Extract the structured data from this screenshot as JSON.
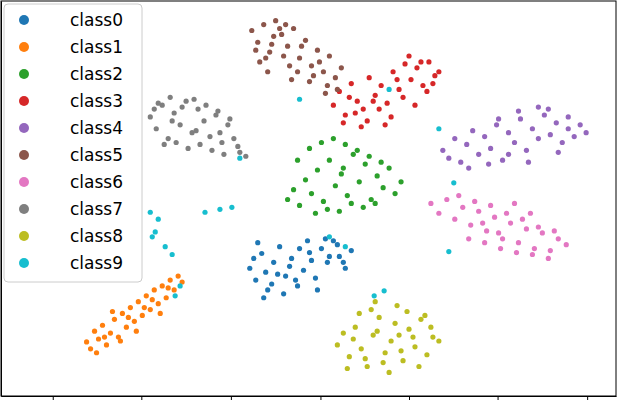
{
  "chart_data": {
    "type": "scatter",
    "legend": "upper left",
    "tick_labels": false,
    "xlim": [
      0,
      618
    ],
    "ylim": [
      0,
      402
    ],
    "xticks": [
      52,
      141,
      231,
      321,
      410,
      499,
      589
    ],
    "series": [
      {
        "name": "class0",
        "color": "#1f77b4",
        "marker": "circle",
        "x": [
          250,
          256,
          262,
          268,
          274,
          280,
          286,
          292,
          298,
          304,
          310,
          316,
          322,
          328,
          334,
          340,
          346,
          352,
          258,
          266,
          272,
          284,
          290,
          300,
          312,
          318,
          326,
          338,
          254,
          264,
          278,
          296,
          308,
          330,
          344
        ],
        "values": [
          130,
          118,
          145,
          108,
          136,
          152,
          122,
          140,
          112,
          128,
          146,
          120,
          150,
          136,
          158,
          142,
          130,
          148,
          156,
          126,
          114,
          104,
          132,
          150,
          138,
          108,
          160,
          154,
          140,
          100,
          124,
          118,
          158,
          142,
          136
        ]
      },
      {
        "name": "class1",
        "color": "#ff7f0e",
        "marker": "circle",
        "x": [
          86,
          90,
          94,
          98,
          102,
          106,
          110,
          114,
          118,
          122,
          126,
          130,
          134,
          138,
          142,
          146,
          150,
          154,
          158,
          162,
          166,
          170,
          174,
          178,
          182,
          96,
          104,
          112,
          120,
          128,
          136,
          144,
          152,
          160,
          168
        ],
        "values": [
          55,
          48,
          66,
          58,
          72,
          52,
          64,
          78,
          60,
          84,
          70,
          90,
          76,
          96,
          82,
          102,
          88,
          108,
          94,
          112,
          100,
          118,
          108,
          122,
          116,
          44,
          60,
          86,
          56,
          80,
          66,
          90,
          98,
          84,
          110
        ]
      },
      {
        "name": "class2",
        "color": "#2ca02c",
        "marker": "circle",
        "x": [
          288,
          294,
          300,
          306,
          312,
          318,
          324,
          330,
          336,
          342,
          348,
          354,
          360,
          366,
          372,
          378,
          384,
          390,
          396,
          402,
          298,
          310,
          322,
          334,
          346,
          358,
          370,
          382,
          316,
          328,
          340,
          352,
          364,
          376,
          344
        ],
        "values": [
          200,
          210,
          194,
          220,
          206,
          230,
          198,
          240,
          214,
          226,
          204,
          246,
          218,
          236,
          200,
          224,
          212,
          232,
          206,
          218,
          240,
          252,
          258,
          262,
          256,
          250,
          244,
          238,
          186,
          190,
          188,
          196,
          192,
          196,
          232
        ]
      },
      {
        "name": "class3",
        "color": "#d62728",
        "marker": "circle",
        "x": [
          334,
          340,
          346,
          352,
          358,
          364,
          370,
          376,
          382,
          388,
          394,
          400,
          406,
          412,
          418,
          424,
          430,
          436,
          440,
          344,
          356,
          368,
          380,
          392,
          404,
          416,
          428,
          350,
          362,
          374,
          386,
          398,
          410,
          422,
          434
        ],
        "values": [
          296,
          310,
          286,
          318,
          300,
          292,
          324,
          306,
          316,
          298,
          330,
          312,
          338,
          322,
          334,
          316,
          340,
          326,
          330,
          278,
          288,
          280,
          292,
          284,
          304,
          296,
          310,
          304,
          274,
          300,
          276,
          322,
          346,
          340,
          318
        ]
      },
      {
        "name": "class4",
        "color": "#9467bd",
        "marker": "circle",
        "x": [
          444,
          450,
          456,
          462,
          468,
          474,
          480,
          486,
          492,
          498,
          504,
          510,
          516,
          522,
          528,
          534,
          540,
          546,
          552,
          558,
          564,
          570,
          576,
          582,
          588,
          470,
          490,
          510,
          530,
          550,
          570,
          500,
          520,
          540,
          560
        ],
        "values": [
          250,
          242,
          262,
          238,
          256,
          270,
          246,
          264,
          252,
          276,
          240,
          268,
          258,
          282,
          250,
          272,
          262,
          286,
          266,
          278,
          258,
          272,
          264,
          276,
          268,
          232,
          236,
          246,
          238,
          292,
          284,
          282,
          290,
          294,
          248
        ]
      },
      {
        "name": "class5",
        "color": "#8c564b",
        "marker": "circle",
        "x": [
          252,
          258,
          264,
          270,
          276,
          282,
          288,
          294,
          300,
          306,
          312,
          318,
          324,
          330,
          336,
          342,
          260,
          268,
          274,
          284,
          292,
          302,
          310,
          320,
          328,
          338,
          256,
          266,
          280,
          290,
          298,
          314,
          326,
          272,
          286
        ],
        "values": [
          372,
          360,
          378,
          350,
          382,
          368,
          356,
          374,
          344,
          362,
          336,
          352,
          330,
          346,
          324,
          334,
          340,
          330,
          366,
          346,
          322,
          356,
          320,
          340,
          316,
          312,
          352,
          344,
          374,
          336,
          330,
          326,
          308,
          358,
          378
        ]
      },
      {
        "name": "class6",
        "color": "#e377c2",
        "marker": "circle",
        "x": [
          432,
          440,
          448,
          456,
          464,
          472,
          480,
          488,
          496,
          504,
          512,
          520,
          528,
          536,
          544,
          552,
          560,
          568,
          460,
          476,
          492,
          508,
          524,
          540,
          556,
          470,
          486,
          502,
          518,
          534,
          550,
          484,
          500,
          516,
          532
        ],
        "values": [
          196,
          186,
          200,
          180,
          192,
          174,
          188,
          168,
          182,
          160,
          176,
          156,
          170,
          150,
          166,
          148,
          160,
          154,
          204,
          198,
          194,
          186,
          180,
          172,
          168,
          160,
          156,
          150,
          146,
          144,
          140,
          176,
          166,
          196,
          186
        ]
      },
      {
        "name": "class7",
        "color": "#7f7f7f",
        "marker": "circle",
        "x": [
          150,
          156,
          162,
          168,
          174,
          180,
          186,
          192,
          198,
          204,
          210,
          216,
          222,
          228,
          234,
          240,
          246,
          158,
          170,
          182,
          194,
          206,
          218,
          230,
          164,
          176,
          188,
          200,
          212,
          224,
          154,
          172,
          196,
          220,
          238
        ],
        "values": [
          284,
          272,
          296,
          262,
          288,
          276,
          300,
          268,
          292,
          280,
          264,
          286,
          258,
          276,
          262,
          248,
          244,
          298,
          304,
          294,
          302,
          296,
          290,
          282,
          256,
          258,
          252,
          256,
          250,
          246,
          292,
          280,
          270,
          268,
          254
        ]
      },
      {
        "name": "class8",
        "color": "#bcbd22",
        "marker": "circle",
        "x": [
          338,
          344,
          350,
          356,
          362,
          368,
          374,
          380,
          386,
          392,
          398,
          404,
          410,
          416,
          422,
          428,
          434,
          440,
          348,
          360,
          372,
          384,
          396,
          408,
          420,
          432,
          354,
          366,
          378,
          390,
          402,
          414,
          426,
          376,
          400
        ],
        "values": [
          52,
          64,
          40,
          70,
          48,
          30,
          62,
          80,
          44,
          56,
          92,
          36,
          68,
          50,
          78,
          42,
          60,
          56,
          28,
          84,
          88,
          34,
          74,
          86,
          30,
          70,
          58,
          38,
          66,
          24,
          46,
          60,
          82,
          96,
          62
        ]
      },
      {
        "name": "class9",
        "color": "#17becf",
        "marker": "circle",
        "x": [
          150,
          158,
          155,
          165,
          172,
          152,
          180,
          175,
          220,
          232,
          240,
          330,
          346,
          375,
          385,
          450,
          455,
          440,
          300,
          205,
          390
        ],
        "values": [
          187,
          180,
          167,
          152,
          144,
          162,
          112,
          102,
          190,
          192,
          242,
          162,
          152,
          102,
          107,
          147,
          217,
          272,
          302,
          187,
          312
        ]
      }
    ]
  }
}
